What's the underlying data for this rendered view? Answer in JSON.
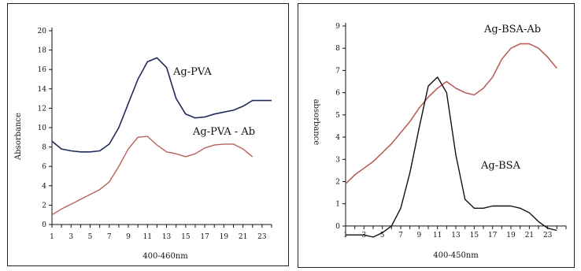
{
  "chart_data": [
    {
      "type": "line",
      "title": "",
      "xlabel": "400-460nm",
      "ylabel": "Absorbance",
      "x": [
        1,
        2,
        3,
        4,
        5,
        6,
        7,
        8,
        9,
        10,
        11,
        12,
        13,
        14,
        15,
        16,
        17,
        18,
        19,
        20,
        21,
        22,
        23,
        24
      ],
      "x_ticks": [
        "1",
        "3",
        "5",
        "7",
        "9",
        "11",
        "13",
        "15",
        "17",
        "19",
        "21",
        "23"
      ],
      "y_ticks": [
        "0",
        "2",
        "4",
        "6",
        "8",
        "10",
        "12",
        "14",
        "16",
        "18",
        "20"
      ],
      "ylim": [
        0,
        20
      ],
      "xlim": [
        1,
        24
      ],
      "grid": false,
      "series": [
        {
          "name": "Ag-PVA",
          "color": "#1f2a5a",
          "values": [
            8.6,
            7.8,
            7.6,
            7.5,
            7.5,
            7.6,
            8.3,
            10.0,
            12.5,
            15.0,
            16.8,
            17.2,
            16.2,
            13.0,
            11.4,
            11.0,
            11.1,
            11.4,
            11.6,
            11.8,
            12.2,
            12.8,
            12.8,
            12.8
          ]
        },
        {
          "name": "Ag-PVA - Ab",
          "color": "#b9605a",
          "values": [
            1.0,
            1.6,
            2.1,
            2.6,
            3.1,
            3.6,
            4.4,
            6.0,
            7.8,
            9.0,
            9.1,
            8.2,
            7.5,
            7.3,
            7.0,
            7.3,
            7.9,
            8.2,
            8.3,
            8.3,
            7.8,
            7.0,
            null,
            null
          ]
        }
      ]
    },
    {
      "type": "line",
      "title": "",
      "xlabel": "400-450nm",
      "ylabel": "absorbance",
      "x": [
        1,
        2,
        3,
        4,
        5,
        6,
        7,
        8,
        9,
        10,
        11,
        12,
        13,
        14,
        15,
        16,
        17,
        18,
        19,
        20,
        21,
        22,
        23,
        24,
        25
      ],
      "x_ticks": [
        "1",
        "3",
        "5",
        "7",
        "9",
        "11",
        "13",
        "15",
        "17",
        "19",
        "21",
        "23"
      ],
      "y_ticks": [
        "0",
        "1",
        "2",
        "3",
        "4",
        "5",
        "6",
        "7",
        "8",
        "9"
      ],
      "ylim": [
        -0.5,
        9
      ],
      "xlim": [
        1,
        25
      ],
      "grid": false,
      "series": [
        {
          "name": "Ag-BSA-Ab",
          "color": "#b9605a",
          "values": [
            1.9,
            2.3,
            2.6,
            2.9,
            3.3,
            3.7,
            4.2,
            4.7,
            5.3,
            5.8,
            6.2,
            6.5,
            6.2,
            6.0,
            5.9,
            6.2,
            6.7,
            7.5,
            8.0,
            8.2,
            8.2,
            8.0,
            7.6,
            7.1,
            null
          ]
        },
        {
          "name": "Ag-BSA",
          "color": "#111111",
          "values": [
            -0.4,
            -0.4,
            -0.4,
            -0.5,
            -0.3,
            0.0,
            0.8,
            2.4,
            4.4,
            6.3,
            6.7,
            6.0,
            3.2,
            1.2,
            0.8,
            0.8,
            0.9,
            0.9,
            0.9,
            0.8,
            0.6,
            0.2,
            -0.1,
            -0.2,
            null
          ]
        }
      ]
    }
  ]
}
